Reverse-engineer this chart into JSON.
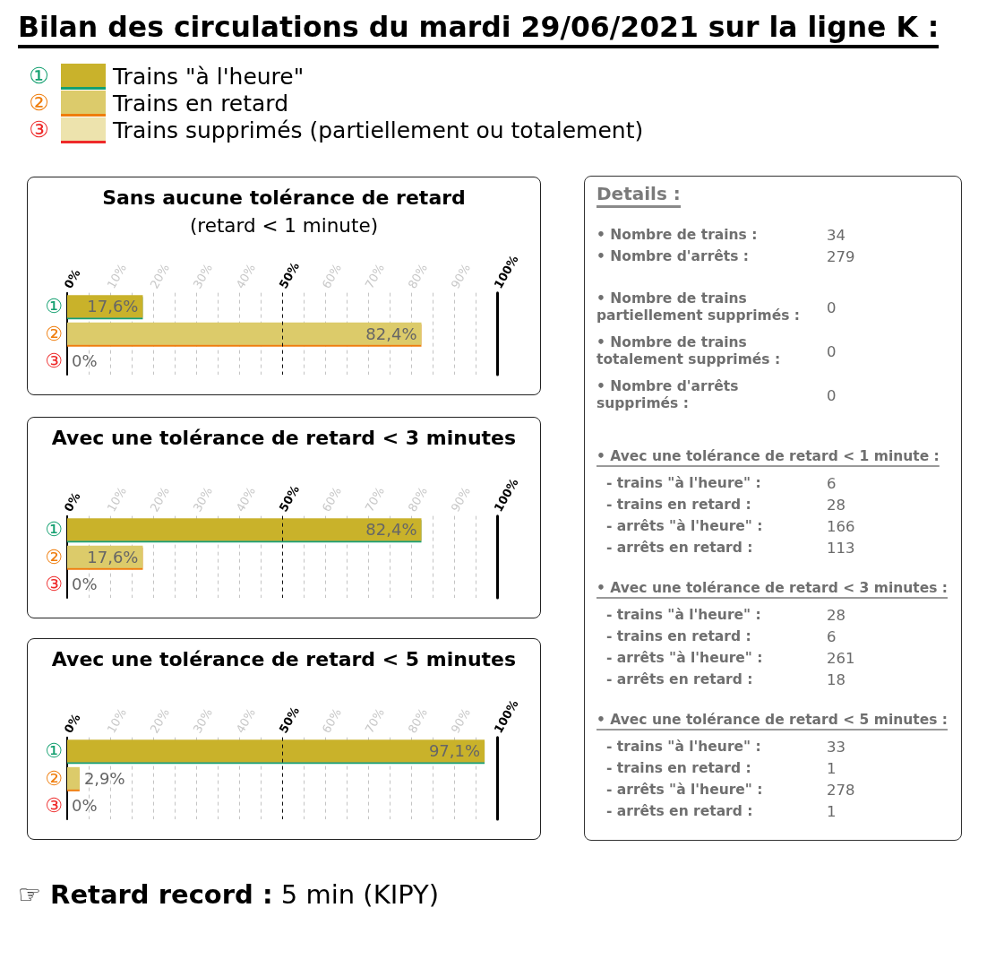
{
  "chart_data": [
    {
      "type": "bar",
      "orientation": "horizontal",
      "title": "Bilan des circulations du mardi 29/06/2021 sur la ligne K :",
      "subtitle": "Sans aucune tolérance de retard\n(retard < 1 minute)",
      "categories": [
        "①",
        "②",
        "③"
      ],
      "series": [
        {
          "name": "Trains \"à l'heure\"",
          "color": "#c9b22b",
          "values": [
            17.6,
            null,
            null
          ],
          "value_labels": [
            "17,6%",
            null,
            null
          ]
        },
        {
          "name": "Trains en retard",
          "color": "#dccb6b",
          "values": [
            null,
            82.4,
            null
          ],
          "value_labels": [
            null,
            "82,4%",
            null
          ]
        },
        {
          "name": "Trains supprimés (partiellement ou totalement)",
          "color": "#ede3ad",
          "values": [
            null,
            null,
            0
          ],
          "value_labels": [
            null,
            null,
            "0%"
          ]
        }
      ],
      "xlim": [
        0,
        100
      ],
      "xticks": [
        {
          "value": 0,
          "label": "0%"
        },
        {
          "value": 5,
          "label": null
        },
        {
          "value": 10,
          "label": "10%"
        },
        {
          "value": 15,
          "label": null
        },
        {
          "value": 20,
          "label": "20%"
        },
        {
          "value": 25,
          "label": null
        },
        {
          "value": 30,
          "label": "30%"
        },
        {
          "value": 35,
          "label": null
        },
        {
          "value": 40,
          "label": "40%"
        },
        {
          "value": 45,
          "label": null
        },
        {
          "value": 50,
          "label": "50%"
        },
        {
          "value": 55,
          "label": null
        },
        {
          "value": 60,
          "label": "60%"
        },
        {
          "value": 65,
          "label": null
        },
        {
          "value": 70,
          "label": "70%"
        },
        {
          "value": 75,
          "label": null
        },
        {
          "value": 80,
          "label": "80%"
        },
        {
          "value": 85,
          "label": null
        },
        {
          "value": 90,
          "label": "90%"
        },
        {
          "value": 95,
          "label": null
        },
        {
          "value": 100,
          "label": "100%"
        }
      ],
      "ref_lines": [
        {
          "axis": "x",
          "value": 50,
          "color": "#111111",
          "line_style": "dashed"
        }
      ],
      "grid": "x",
      "legend": "top right"
    },
    {
      "type": "bar",
      "orientation": "horizontal",
      "title": "Avec une tolérance de retard < 3 minutes",
      "categories": [
        "①",
        "②",
        "③"
      ],
      "series": [
        {
          "color": "#c9b22b",
          "values": [
            82.4,
            null,
            null
          ],
          "value_labels": [
            "82,4%",
            null,
            null
          ]
        },
        {
          "color": "#dccb6b",
          "values": [
            null,
            17.6,
            null
          ],
          "value_labels": [
            null,
            "17,6%",
            null
          ]
        },
        {
          "color": "#ede3ad",
          "values": [
            null,
            null,
            0
          ],
          "value_labels": [
            null,
            null,
            "0%"
          ]
        }
      ],
      "xlim": [
        0,
        100
      ],
      "xticks": [
        {
          "value": 0,
          "label": "0%"
        },
        {
          "value": 5,
          "label": null
        },
        {
          "value": 10,
          "label": "10%"
        },
        {
          "value": 15,
          "label": null
        },
        {
          "value": 20,
          "label": "20%"
        },
        {
          "value": 25,
          "label": null
        },
        {
          "value": 30,
          "label": "30%"
        },
        {
          "value": 35,
          "label": null
        },
        {
          "value": 40,
          "label": "40%"
        },
        {
          "value": 45,
          "label": null
        },
        {
          "value": 50,
          "label": "50%"
        },
        {
          "value": 55,
          "label": null
        },
        {
          "value": 60,
          "label": "60%"
        },
        {
          "value": 65,
          "label": null
        },
        {
          "value": 70,
          "label": "70%"
        },
        {
          "value": 75,
          "label": null
        },
        {
          "value": 80,
          "label": "80%"
        },
        {
          "value": 85,
          "label": null
        },
        {
          "value": 90,
          "label": "90%"
        },
        {
          "value": 95,
          "label": null
        },
        {
          "value": 100,
          "label": "100%"
        }
      ],
      "ref_lines": [
        {
          "axis": "x",
          "value": 50,
          "color": "#111111",
          "line_style": "dashed"
        }
      ],
      "grid": "x"
    },
    {
      "type": "bar",
      "orientation": "horizontal",
      "title": "Avec une tolérance de retard < 5 minutes",
      "categories": [
        "①",
        "②",
        "③"
      ],
      "series": [
        {
          "color": "#c9b22b",
          "values": [
            97.1,
            null,
            null
          ],
          "value_labels": [
            "97,1%",
            null,
            null
          ]
        },
        {
          "color": "#dccb6b",
          "values": [
            null,
            2.9,
            null
          ],
          "value_labels": [
            null,
            "2,9%",
            null
          ]
        },
        {
          "color": "#ede3ad",
          "values": [
            null,
            null,
            0
          ],
          "value_labels": [
            null,
            null,
            "0%"
          ]
        }
      ],
      "xlim": [
        0,
        100
      ],
      "xticks": [
        {
          "value": 0,
          "label": "0%"
        },
        {
          "value": 5,
          "label": null
        },
        {
          "value": 10,
          "label": "10%"
        },
        {
          "value": 15,
          "label": null
        },
        {
          "value": 20,
          "label": "20%"
        },
        {
          "value": 25,
          "label": null
        },
        {
          "value": 30,
          "label": "30%"
        },
        {
          "value": 35,
          "label": null
        },
        {
          "value": 40,
          "label": "40%"
        },
        {
          "value": 45,
          "label": null
        },
        {
          "value": 50,
          "label": "50%"
        },
        {
          "value": 55,
          "label": null
        },
        {
          "value": 60,
          "label": "60%"
        },
        {
          "value": 65,
          "label": null
        },
        {
          "value": 70,
          "label": "70%"
        },
        {
          "value": 75,
          "label": null
        },
        {
          "value": 80,
          "label": "80%"
        },
        {
          "value": 85,
          "label": null
        },
        {
          "value": 90,
          "label": "90%"
        },
        {
          "value": 95,
          "label": null
        },
        {
          "value": 100,
          "label": "100%"
        }
      ],
      "ref_lines": [
        {
          "axis": "x",
          "value": 50,
          "color": "#111111",
          "line_style": "dashed"
        }
      ],
      "grid": "x",
      "annotations": [
        "☞ Retard record : 5 min (KIPY)"
      ]
    },
    {
      "type": "other",
      "title": "Details :",
      "annotations": [
        "• Nombre de trains :",
        "34",
        "• Nombre d'arrêts :",
        "279",
        "• Nombre de trains\npartiellement supprimés :",
        "0",
        "• Nombre de trains\ntotalement supprimés :",
        "0",
        "• Nombre d'arrêts\nsupprimés :",
        "0",
        "• Avec une tolérance de retard < 1 minute :",
        "- trains \"à l'heure\" :",
        "6",
        "- trains en retard :",
        "28",
        "- arrêts \"à l'heure\" :",
        "166",
        "- arrêts en retard :",
        "113",
        "• Avec une tolérance de retard < 3 minutes :",
        "- trains \"à l'heure\" :",
        "28",
        "- trains en retard :",
        "6",
        "- arrêts \"à l'heure\" :",
        "261",
        "- arrêts en retard :",
        "18",
        "• Avec une tolérance de retard < 5 minutes :",
        "- trains \"à l'heure\" :",
        "33",
        "- trains en retard :",
        "1",
        "- arrêts \"à l'heure\" :",
        "278",
        "- arrêts en retard :",
        "1"
      ]
    }
  ]
}
